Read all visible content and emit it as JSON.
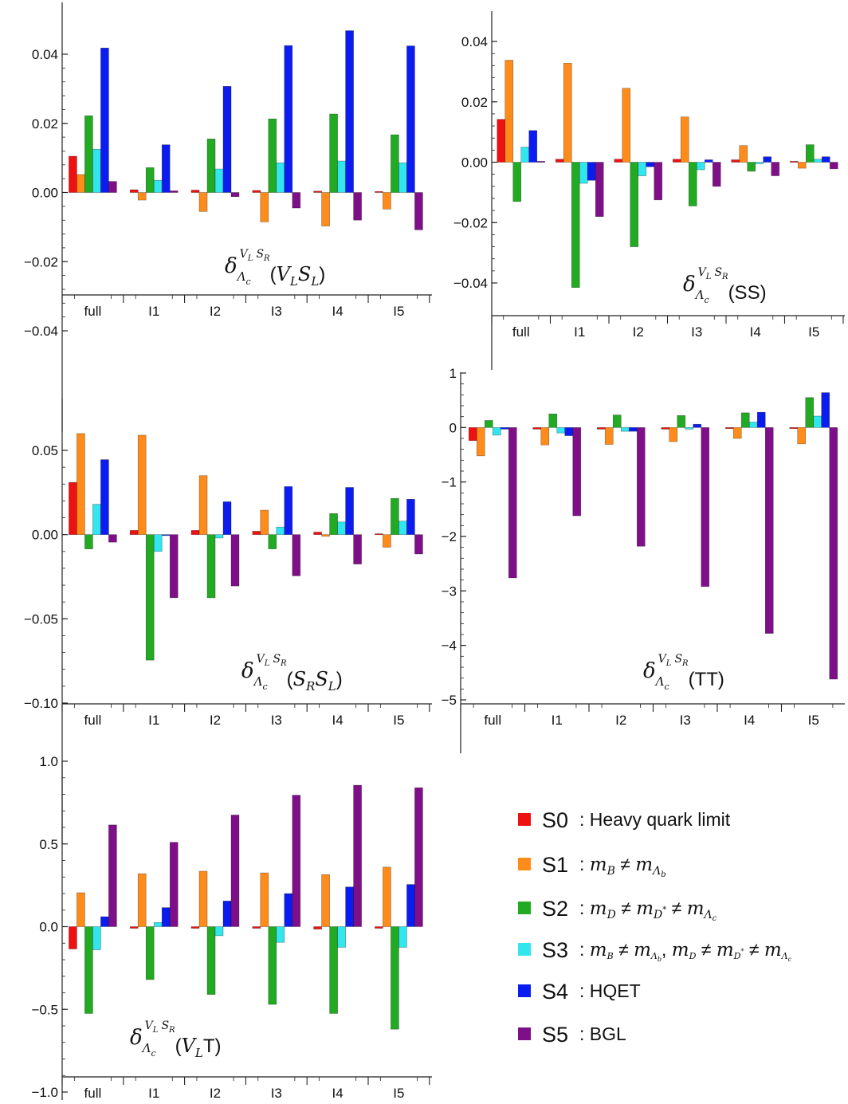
{
  "chart_data": [
    {
      "id": "VLSL",
      "type": "bar",
      "title": "",
      "xlabel": "",
      "ylabel": "",
      "categories": [
        "full",
        "I1",
        "I2",
        "I3",
        "I4",
        "I5"
      ],
      "ylim": [
        -0.04,
        0.05
      ],
      "yticks": [
        "0.04",
        "0.02",
        "0.00",
        "−0.02",
        "−0.04"
      ],
      "annotation": {
        "symbol": "δ",
        "subscript": "Λ",
        "subsub": "c",
        "superscript": "VL SR",
        "arg": "(VLSL)"
      },
      "series_values": [
        [
          0.0105,
          0.0008,
          0.0007,
          0.0006,
          0.0004,
          0.0003
        ],
        [
          0.0052,
          -0.0022,
          -0.0055,
          -0.0085,
          -0.0097,
          -0.0048
        ],
        [
          0.0222,
          0.0072,
          0.0155,
          0.0213,
          0.0227,
          0.0167
        ],
        [
          0.0125,
          0.0035,
          0.0068,
          0.0086,
          0.0091,
          0.0086
        ],
        [
          0.0418,
          0.0138,
          0.0307,
          0.0425,
          0.0468,
          0.0424
        ],
        [
          0.0032,
          0.0005,
          -0.0012,
          -0.0045,
          -0.008,
          -0.0108
        ]
      ]
    },
    {
      "id": "SS",
      "type": "bar",
      "title": "",
      "xlabel": "",
      "ylabel": "",
      "categories": [
        "full",
        "I1",
        "I2",
        "I3",
        "I4",
        "I5"
      ],
      "ylim": [
        -0.05,
        0.05
      ],
      "yticks": [
        "0.04",
        "0.02",
        "0.00",
        "−0.02",
        "−0.04"
      ],
      "annotation": {
        "symbol": "δ",
        "subscript": "Λ",
        "subsub": "c",
        "superscript": "VL SR",
        "arg": "(SS)"
      },
      "series_values": [
        [
          0.0142,
          0.001,
          0.001,
          0.001,
          0.0008,
          0.0003
        ],
        [
          0.0338,
          0.0328,
          0.0245,
          0.015,
          0.0055,
          -0.002
        ],
        [
          -0.013,
          -0.0415,
          -0.028,
          -0.0145,
          -0.003,
          0.0058
        ],
        [
          0.005,
          -0.007,
          -0.0045,
          -0.0025,
          -0.0005,
          0.001
        ],
        [
          0.0105,
          -0.006,
          -0.0015,
          0.0008,
          0.0018,
          0.0018
        ],
        [
          0.0003,
          -0.018,
          -0.0125,
          -0.008,
          -0.0045,
          -0.0022
        ]
      ]
    },
    {
      "id": "SRSL",
      "type": "bar",
      "title": "",
      "xlabel": "",
      "ylabel": "",
      "categories": [
        "full",
        "I1",
        "I2",
        "I3",
        "I4",
        "I5"
      ],
      "ylim": [
        -0.1,
        0.08
      ],
      "yticks": [
        "0.05",
        "0.00",
        "−0.05",
        "−0.10"
      ],
      "annotation": {
        "symbol": "δ",
        "subscript": "Λ",
        "subsub": "c",
        "superscript": "VL SR",
        "arg": "(SRSL)"
      },
      "series_values": [
        [
          0.031,
          0.0025,
          0.0025,
          0.002,
          0.0015,
          0.0005
        ],
        [
          0.06,
          0.059,
          0.035,
          0.0145,
          -0.001,
          -0.0075
        ],
        [
          -0.0085,
          -0.0745,
          -0.0375,
          -0.0085,
          0.0125,
          0.0215
        ],
        [
          0.018,
          -0.01,
          -0.002,
          0.0045,
          0.0075,
          0.008
        ],
        [
          0.0445,
          0.0,
          0.0195,
          0.0285,
          0.028,
          0.021
        ],
        [
          -0.0045,
          -0.0375,
          -0.0305,
          -0.0245,
          -0.0175,
          -0.0115
        ]
      ]
    },
    {
      "id": "TT",
      "type": "bar",
      "title": "",
      "xlabel": "",
      "ylabel": "",
      "categories": [
        "full",
        "I1",
        "I2",
        "I3",
        "I4",
        "I5"
      ],
      "ylim": [
        -5.0,
        1.0
      ],
      "yticks": [
        "1",
        "0",
        "−1",
        "−2",
        "−3",
        "−4",
        "−5"
      ],
      "annotation": {
        "symbol": "δ",
        "subscript": "Λ",
        "subsub": "c",
        "superscript": "VL SR",
        "arg": "(TT)"
      },
      "series_values": [
        [
          -0.24,
          -0.03,
          -0.03,
          -0.03,
          -0.02,
          -0.02
        ],
        [
          -0.52,
          -0.32,
          -0.31,
          -0.26,
          -0.2,
          -0.3
        ],
        [
          0.13,
          0.25,
          0.23,
          0.22,
          0.27,
          0.55
        ],
        [
          -0.14,
          -0.1,
          -0.07,
          -0.03,
          0.1,
          0.21
        ],
        [
          -0.03,
          -0.15,
          -0.07,
          0.06,
          0.28,
          0.64
        ],
        [
          -2.76,
          -1.62,
          -2.18,
          -2.92,
          -3.78,
          -4.62
        ]
      ]
    },
    {
      "id": "VLT",
      "type": "bar",
      "title": "",
      "xlabel": "",
      "ylabel": "",
      "categories": [
        "full",
        "I1",
        "I2",
        "I3",
        "I4",
        "I5"
      ],
      "ylim": [
        -1.0,
        1.0
      ],
      "yticks": [
        "1.0",
        "0.5",
        "0.0",
        "−0.5",
        "−1.0"
      ],
      "annotation": {
        "symbol": "δ",
        "subscript": "Λ",
        "subsub": "c",
        "superscript": "VL SR",
        "arg": "(VLT)"
      },
      "series_values": [
        [
          -0.135,
          -0.01,
          -0.01,
          -0.01,
          -0.015,
          -0.01
        ],
        [
          0.205,
          0.32,
          0.335,
          0.325,
          0.315,
          0.36
        ],
        [
          -0.525,
          -0.32,
          -0.41,
          -0.47,
          -0.525,
          -0.62
        ],
        [
          -0.14,
          0.025,
          -0.055,
          -0.095,
          -0.125,
          -0.125
        ],
        [
          0.06,
          0.115,
          0.155,
          0.2,
          0.24,
          0.255
        ],
        [
          0.615,
          0.51,
          0.675,
          0.795,
          0.855,
          0.84
        ]
      ]
    }
  ],
  "series": [
    {
      "name": "S0",
      "color": "#ee1111"
    },
    {
      "name": "S1",
      "color": "#ff8c1a"
    },
    {
      "name": "S2",
      "color": "#22aa22"
    },
    {
      "name": "S3",
      "color": "#33e6ee"
    },
    {
      "name": "S4",
      "color": "#0a1cf0"
    },
    {
      "name": "S5",
      "color": "#7f0f88"
    }
  ],
  "legend": {
    "placement": "bottom-right",
    "items": [
      {
        "name": "S0",
        "desc": ": Heavy quark limit"
      },
      {
        "name": "S1",
        "desc": ": mB ≠ mΛb"
      },
      {
        "name": "S2",
        "desc": ": mD ≠ mD* ≠ mΛc"
      },
      {
        "name": "S3",
        "desc": ": mB ≠ mΛb, mD ≠ mD* ≠ mΛc"
      },
      {
        "name": "S4",
        "desc": ": HQET"
      },
      {
        "name": "S5",
        "desc": ": BGL"
      }
    ]
  }
}
